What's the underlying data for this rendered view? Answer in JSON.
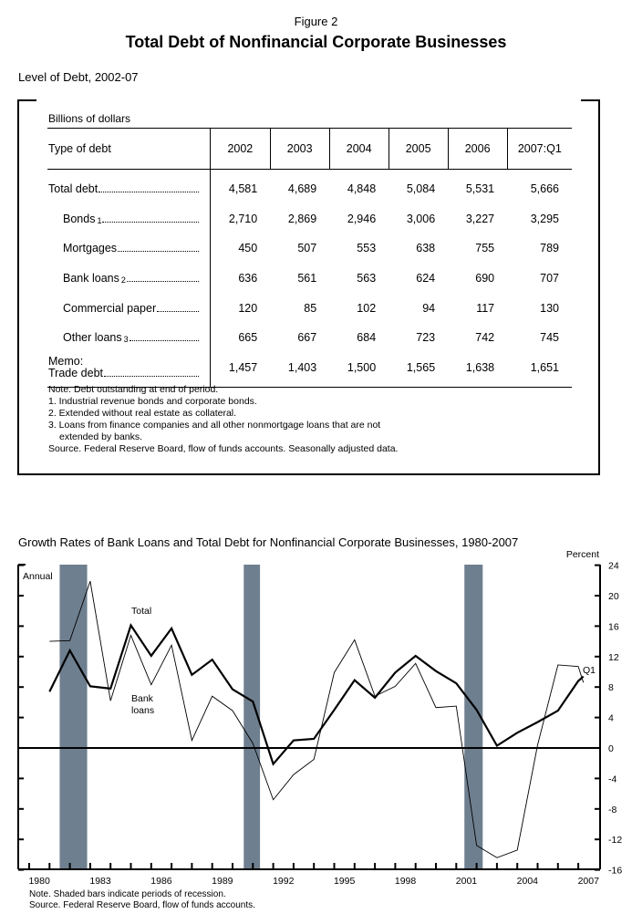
{
  "figure_number": "Figure 2",
  "title": "Total Debt of Nonfinancial Corporate Businesses",
  "table_section": {
    "title": "Level of Debt, 2002-07",
    "units": "Billions of dollars",
    "header": {
      "label": "Type of debt",
      "columns": [
        "2002",
        "2003",
        "2004",
        "2005",
        "2006",
        "2007:Q1"
      ]
    },
    "rows": [
      {
        "label": "Total debt",
        "footnote": "",
        "indent": false,
        "values": [
          "4,581",
          "4,689",
          "4,848",
          "5,084",
          "5,531",
          "5,666"
        ]
      },
      {
        "label": "Bonds",
        "footnote": "1",
        "indent": true,
        "values": [
          "2,710",
          "2,869",
          "2,946",
          "3,006",
          "3,227",
          "3,295"
        ]
      },
      {
        "label": "Mortgages",
        "footnote": "",
        "indent": true,
        "values": [
          "450",
          "507",
          "553",
          "638",
          "755",
          "789"
        ]
      },
      {
        "label": "Bank loans",
        "footnote": "2",
        "indent": true,
        "values": [
          "636",
          "561",
          "563",
          "624",
          "690",
          "707"
        ]
      },
      {
        "label": "Commercial paper",
        "footnote": "",
        "indent": true,
        "values": [
          "120",
          "85",
          "102",
          "94",
          "117",
          "130"
        ]
      },
      {
        "label": "Other loans",
        "footnote": "3",
        "indent": true,
        "values": [
          "665",
          "667",
          "684",
          "723",
          "742",
          "745"
        ]
      },
      {
        "label": "Trade debt",
        "prefix": "Memo:",
        "footnote": "",
        "indent": false,
        "values": [
          "1,457",
          "1,403",
          "1,500",
          "1,565",
          "1,638",
          "1,651"
        ]
      }
    ],
    "notes": [
      "Note. Debt outstanding at end of period.",
      "1. Industrial revenue bonds and corporate bonds.",
      "2. Extended without real estate as collateral.",
      "3. Loans from finance companies and all other nonmortgage loans that are not",
      "extended by banks.",
      "Source. Federal Reserve Board, flow of funds accounts.  Seasonally adjusted data."
    ]
  },
  "chart_data": {
    "type": "line",
    "title": "Growth Rates of Bank Loans and Total Debt for Nonfinancial Corporate Businesses, 1980-2007",
    "ylabel": "Percent",
    "frequency_label": "Annual",
    "ylim": [
      -16,
      24
    ],
    "yticks": [
      24,
      20,
      16,
      12,
      8,
      4,
      0,
      -4,
      -8,
      -12,
      -16
    ],
    "xtick_labels": [
      "1980",
      "1983",
      "1986",
      "1989",
      "1992",
      "1995",
      "1998",
      "2001",
      "2004",
      "2007"
    ],
    "x": [
      "1980",
      "1981",
      "1982",
      "1983",
      "1984",
      "1985",
      "1986",
      "1987",
      "1988",
      "1989",
      "1990",
      "1991",
      "1992",
      "1993",
      "1994",
      "1995",
      "1996",
      "1997",
      "1998",
      "1999",
      "2000",
      "2001",
      "2002",
      "2003",
      "2004",
      "2005",
      "2006",
      "2007:Q1"
    ],
    "series": [
      {
        "name": "Total",
        "style": "thick",
        "values": [
          7.4,
          12.8,
          8.1,
          7.8,
          16.1,
          12.1,
          15.7,
          9.6,
          11.6,
          7.7,
          6.1,
          -2.1,
          1.0,
          1.2,
          5.0,
          8.9,
          6.6,
          9.9,
          12.1,
          10.1,
          8.5,
          5.0,
          0.3,
          2.0,
          3.4,
          4.9,
          8.8,
          9.4
        ]
      },
      {
        "name": "Bank loans",
        "style": "thin",
        "values": [
          14.0,
          14.1,
          21.9,
          6.2,
          14.8,
          8.3,
          13.5,
          1.0,
          6.8,
          4.9,
          0.6,
          -6.8,
          -3.5,
          -1.5,
          9.9,
          14.2,
          6.8,
          8.1,
          11.1,
          5.3,
          5.5,
          -12.8,
          -14.4,
          -13.4,
          0.4,
          10.9,
          10.7,
          8.6
        ]
      }
    ],
    "point_annotation": "Q1",
    "recessions": [
      [
        1981.5,
        1982.85
      ],
      [
        1990.55,
        1991.35
      ],
      [
        2001.4,
        2002.3
      ]
    ],
    "recession_color": "#6e7f8f",
    "zero_line": true,
    "notes": [
      "Note. Shaded bars indicate periods of recession.",
      "Source. Federal Reserve Board, flow of funds accounts."
    ]
  }
}
